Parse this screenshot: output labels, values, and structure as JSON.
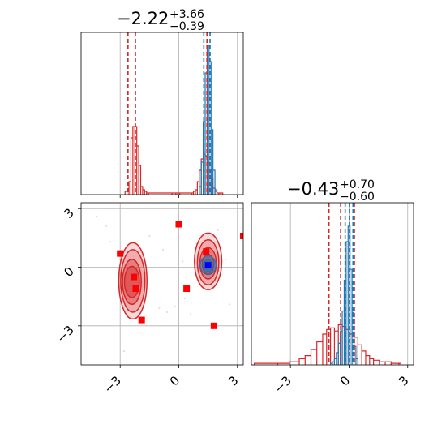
{
  "chart_data": {
    "type": "corner",
    "colors": {
      "red": "#d62728",
      "blue": "#1f77b4",
      "grid": "#b0b0b0",
      "marker": "#ff0000",
      "center": "#0000ff"
    },
    "grid": true,
    "range": [
      -5.0,
      3.3
    ],
    "ticks": {
      "values": [
        -3,
        0,
        3
      ],
      "labels": [
        "−3",
        "0",
        "3"
      ]
    },
    "param1": {
      "title": {
        "median": "−2.22",
        "plus": "+3.66",
        "minus": "−0.39"
      },
      "red_hist": {
        "bins": [
          -2.7,
          -2.6,
          -2.5,
          -2.4,
          -2.3,
          -2.2,
          -2.1,
          -2.0,
          -1.9,
          -1.8,
          -1.7,
          -1.6,
          -1.5,
          -0.3,
          -0.2,
          -0.1,
          0.0,
          0.1,
          0.7,
          0.8,
          0.9,
          1.0,
          1.1,
          1.2,
          1.3,
          1.4,
          1.5,
          1.6,
          1.7,
          1.8,
          1.9,
          2.0,
          2.1,
          2.2
        ],
        "counts": [
          0.02,
          0.03,
          0.08,
          0.35,
          0.42,
          0.42,
          0.3,
          0.18,
          0.05,
          0.03,
          0.02,
          0.01,
          0.01,
          0.01,
          0.01,
          0.01,
          0.01,
          0.01,
          0.01,
          0.02,
          0.03,
          0.08,
          0.15,
          0.22,
          0.25,
          0.24,
          0.2,
          0.15,
          0.1,
          0.04,
          0.02,
          0.01,
          0.01,
          0.01
        ]
      },
      "blue_hist": {
        "bins": [
          1.1,
          1.2,
          1.3,
          1.4,
          1.5,
          1.6,
          1.7,
          1.8,
          1.9
        ],
        "counts": [
          0.05,
          0.2,
          0.45,
          0.75,
          0.92,
          0.82,
          0.4,
          0.15,
          0.03
        ]
      },
      "red_quantiles": [
        -2.6,
        -2.22,
        1.44
      ],
      "blue_quantiles": [
        1.28,
        1.45,
        1.6
      ]
    },
    "param2": {
      "title": {
        "median": "−0.43",
        "plus": "+0.70",
        "minus": "−0.60"
      },
      "red_hist": {
        "bins": [
          -4.8,
          -3.6,
          -3.0,
          -2.5,
          -2.2,
          -1.9,
          -1.6,
          -1.3,
          -1.1,
          -0.9,
          -0.7,
          -0.5,
          -0.3,
          -0.1,
          0.1,
          0.3,
          0.5,
          0.7,
          0.9,
          1.1,
          1.3,
          1.6,
          1.9,
          2.2,
          2.6
        ],
        "counts": [
          0.01,
          0.01,
          0.02,
          0.04,
          0.06,
          0.1,
          0.15,
          0.2,
          0.23,
          0.24,
          0.22,
          0.26,
          0.25,
          0.23,
          0.2,
          0.18,
          0.13,
          0.09,
          0.06,
          0.04,
          0.03,
          0.02,
          0.02,
          0.01,
          0.01
        ]
      },
      "blue_hist": {
        "bins": [
          -0.9,
          -0.8,
          -0.7,
          -0.6,
          -0.5,
          -0.4,
          -0.3,
          -0.2,
          -0.1,
          0.0,
          0.1,
          0.2,
          0.3,
          0.4
        ],
        "counts": [
          0.01,
          0.02,
          0.04,
          0.08,
          0.14,
          0.22,
          0.35,
          0.55,
          0.8,
          0.9,
          0.62,
          0.34,
          0.12,
          0.04
        ]
      },
      "red_quantiles": [
        -1.03,
        -0.43,
        0.27
      ],
      "blue_quantiles": [
        -0.2,
        0.02,
        0.2
      ]
    },
    "scatter_2d": {
      "red_markers": [
        [
          -3.0,
          0.7
        ],
        [
          -2.3,
          -0.5
        ],
        [
          -2.2,
          -1.1
        ],
        [
          -1.9,
          -2.7
        ],
        [
          0.0,
          2.2
        ],
        [
          0.4,
          -1.1
        ],
        [
          1.4,
          0.8
        ],
        [
          1.8,
          -3.0
        ],
        [
          3.3,
          1.6
        ]
      ],
      "blue_markers": [
        [
          1.5,
          0.1
        ]
      ],
      "center": [
        1.5,
        0.05
      ],
      "red_contours": [
        {
          "cx": -2.35,
          "cy": -0.7,
          "rx": 0.72,
          "ry": 1.95,
          "opacity": 0.25
        },
        {
          "cx": -2.35,
          "cy": -0.7,
          "rx": 0.62,
          "ry": 1.6,
          "opacity": 0.35
        },
        {
          "cx": -2.4,
          "cy": -0.75,
          "rx": 0.48,
          "ry": 1.15,
          "opacity": 0.5
        },
        {
          "cx": -2.4,
          "cy": -0.75,
          "rx": 0.38,
          "ry": 0.8,
          "opacity": 0.6
        },
        {
          "cx": 1.5,
          "cy": 0.3,
          "rx": 0.7,
          "ry": 1.45,
          "opacity": 0.25
        },
        {
          "cx": 1.5,
          "cy": 0.25,
          "rx": 0.55,
          "ry": 1.15,
          "opacity": 0.35
        },
        {
          "cx": 1.5,
          "cy": 0.2,
          "rx": 0.42,
          "ry": 0.8,
          "opacity": 0.5
        },
        {
          "cx": 1.5,
          "cy": 0.15,
          "rx": 0.3,
          "ry": 0.5,
          "opacity": 0.6
        }
      ],
      "blue_contours": [
        {
          "cx": 1.5,
          "cy": 0.1,
          "rx": 0.4,
          "ry": 0.48,
          "opacity": 0.4
        },
        {
          "cx": 1.5,
          "cy": 0.08,
          "rx": 0.25,
          "ry": 0.3,
          "opacity": 0.6
        }
      ],
      "faint_points": [
        [
          -4.2,
          2.6
        ],
        [
          -3.7,
          2.1
        ],
        [
          -3.5,
          1.3
        ],
        [
          -1.7,
          -0.3
        ],
        [
          -1.5,
          1.6
        ],
        [
          -1.0,
          -2.1
        ],
        [
          -0.6,
          -2.3
        ],
        [
          -0.2,
          -2.0
        ],
        [
          0.3,
          -1.6
        ],
        [
          0.6,
          -2.4
        ],
        [
          0.9,
          1.2
        ],
        [
          1.1,
          -0.7
        ],
        [
          2.4,
          0.4
        ],
        [
          2.6,
          -1.9
        ],
        [
          -2.8,
          -4.3
        ],
        [
          -0.8,
          0.9
        ],
        [
          0.2,
          0.3
        ],
        [
          2.0,
          1.9
        ]
      ]
    }
  }
}
